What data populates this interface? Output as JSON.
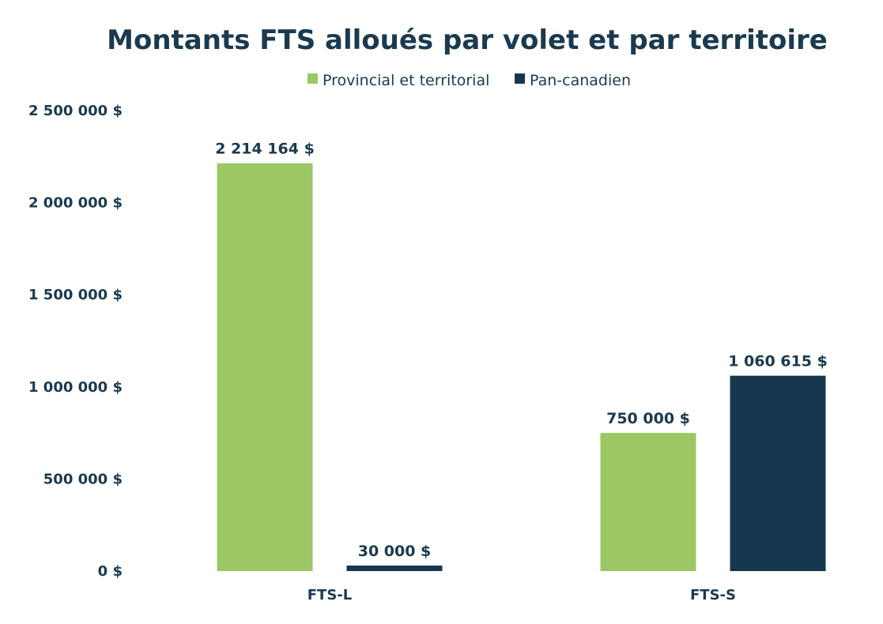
{
  "chart_data": {
    "type": "bar",
    "title": "Montants FTS alloués par volet et par territoire",
    "xlabel": "",
    "ylabel": "",
    "categories": [
      "FTS-L",
      "FTS-S"
    ],
    "series": [
      {
        "name": "Provincial et territorial",
        "color": "#9bc764",
        "values": [
          2214164,
          750000
        ],
        "labels": [
          "2 214 164 $",
          "750 000 $"
        ]
      },
      {
        "name": "Pan-canadien",
        "color": "#17374f",
        "values": [
          30000,
          1060615
        ],
        "labels": [
          "30 000 $",
          "1 060 615 $"
        ]
      }
    ],
    "ylim": [
      0,
      2500000
    ],
    "yticks": [
      0,
      500000,
      1000000,
      1500000,
      2000000,
      2500000
    ],
    "ytick_labels": [
      "0 $",
      "500 000 $",
      "1 000 000 $",
      "1 500 000 $",
      "2 000 000 $",
      "2 500 000 $"
    ],
    "grid": false,
    "legend_position": "top-center"
  }
}
